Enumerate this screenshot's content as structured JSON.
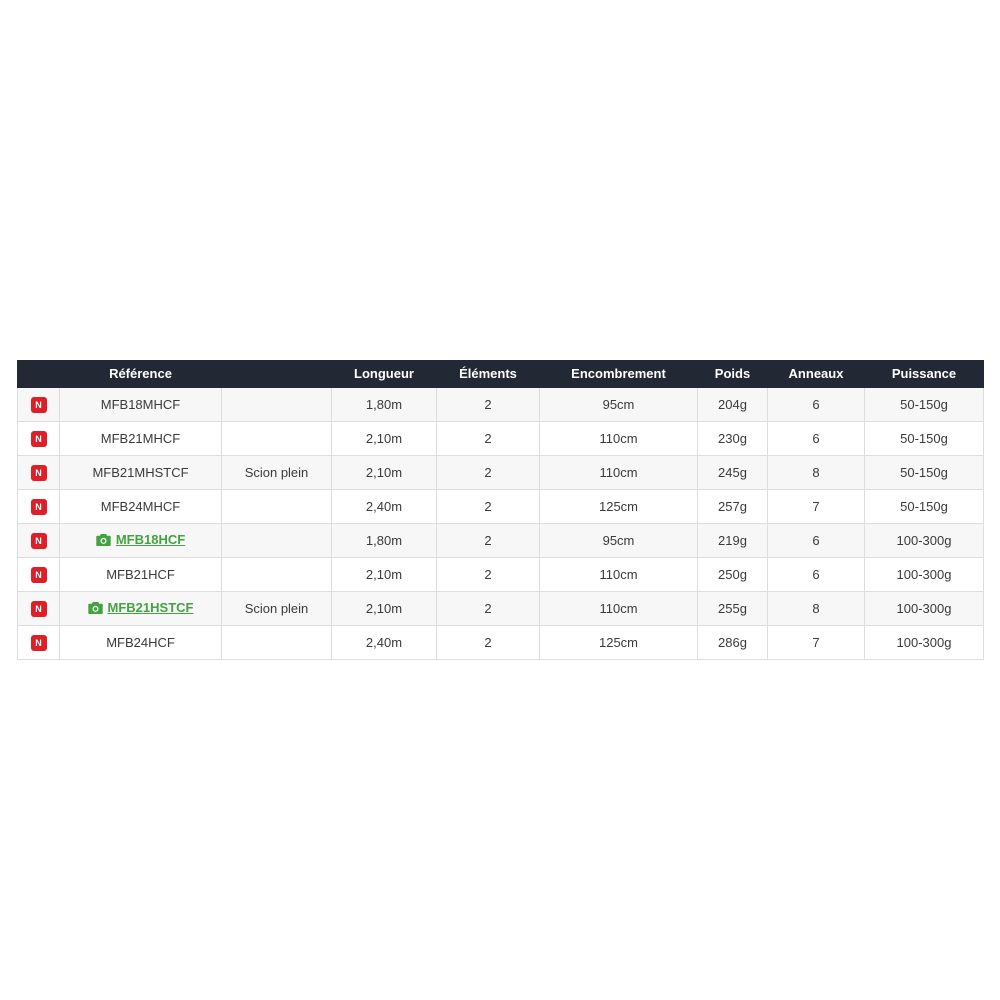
{
  "page": {
    "background_color": "#ffffff"
  },
  "table": {
    "header_bg_color": "#222834",
    "badge_color": "#dd2027",
    "link_color": "#44a340",
    "odd_row_color": "#f7f7f7",
    "border_color": "#dddddd",
    "new_badge_label": "N",
    "headers": [
      "",
      "Référence",
      "",
      "Longueur",
      "Éléments",
      "Encombrement",
      "Poids",
      "Anneaux",
      "Puissance"
    ],
    "rows": [
      {
        "badge": "N",
        "reference": "MFB18MHCF",
        "has_photo_link": false,
        "scion": "",
        "longueur": "1,80m",
        "elements": "2",
        "encombrement": "95cm",
        "poids": "204g",
        "anneaux": "6",
        "puissance": "50-150g"
      },
      {
        "badge": "N",
        "reference": "MFB21MHCF",
        "has_photo_link": false,
        "scion": "",
        "longueur": "2,10m",
        "elements": "2",
        "encombrement": "110cm",
        "poids": "230g",
        "anneaux": "6",
        "puissance": "50-150g"
      },
      {
        "badge": "N",
        "reference": "MFB21MHSTCF",
        "has_photo_link": false,
        "scion": "Scion plein",
        "longueur": "2,10m",
        "elements": "2",
        "encombrement": "110cm",
        "poids": "245g",
        "anneaux": "8",
        "puissance": "50-150g"
      },
      {
        "badge": "N",
        "reference": "MFB24MHCF",
        "has_photo_link": false,
        "scion": "",
        "longueur": "2,40m",
        "elements": "2",
        "encombrement": "125cm",
        "poids": "257g",
        "anneaux": "7",
        "puissance": "50-150g"
      },
      {
        "badge": "N",
        "reference": "MFB18HCF",
        "has_photo_link": true,
        "scion": "",
        "longueur": "1,80m",
        "elements": "2",
        "encombrement": "95cm",
        "poids": "219g",
        "anneaux": "6",
        "puissance": "100-300g"
      },
      {
        "badge": "N",
        "reference": "MFB21HCF",
        "has_photo_link": false,
        "scion": "",
        "longueur": "2,10m",
        "elements": "2",
        "encombrement": "110cm",
        "poids": "250g",
        "anneaux": "6",
        "puissance": "100-300g"
      },
      {
        "badge": "N",
        "reference": "MFB21HSTCF",
        "has_photo_link": true,
        "scion": "Scion plein",
        "longueur": "2,10m",
        "elements": "2",
        "encombrement": "110cm",
        "poids": "255g",
        "anneaux": "8",
        "puissance": "100-300g"
      },
      {
        "badge": "N",
        "reference": "MFB24HCF",
        "has_photo_link": false,
        "scion": "",
        "longueur": "2,40m",
        "elements": "2",
        "encombrement": "125cm",
        "poids": "286g",
        "anneaux": "7",
        "puissance": "100-300g"
      }
    ]
  }
}
